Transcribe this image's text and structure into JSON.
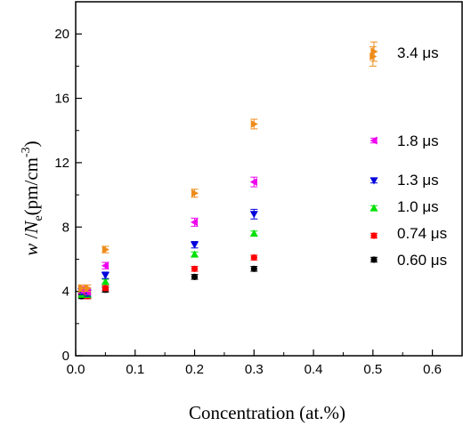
{
  "chart_data": {
    "type": "scatter",
    "title": "",
    "xlabel": "Concentration (at.%)",
    "ylabel": {
      "w": "w",
      "sep": " /",
      "N": "N",
      "sub": "e",
      "unit": "(pm/cm",
      "sup": "-3",
      "close": ")"
    },
    "xlim": [
      0.0,
      0.65
    ],
    "ylim": [
      0,
      22
    ],
    "xticks": [
      "0.0",
      "0.1",
      "0.2",
      "0.3",
      "0.4",
      "0.5",
      "0.6"
    ],
    "yticks": [
      "0",
      "4",
      "8",
      "12",
      "16",
      "20"
    ],
    "grid": false,
    "series": [
      {
        "name": "0.60 μs",
        "color": "#000000",
        "marker": "circle",
        "x": [
          0.01,
          0.02,
          0.05,
          0.2,
          0.3
        ],
        "y": [
          3.7,
          3.7,
          4.1,
          4.9,
          5.4
        ],
        "err": [
          0.15,
          0.15,
          0.15,
          0.15,
          0.15
        ]
      },
      {
        "name": "0.74 μs",
        "color": "#ff0000",
        "marker": "circle",
        "x": [
          0.01,
          0.02,
          0.05,
          0.2,
          0.3
        ],
        "y": [
          3.8,
          3.7,
          4.2,
          5.4,
          6.1
        ],
        "err": [
          0.15,
          0.15,
          0.15,
          0.15,
          0.15
        ]
      },
      {
        "name": "1.0 μs",
        "color": "#00e000",
        "marker": "triangle-up",
        "x": [
          0.01,
          0.02,
          0.05,
          0.2,
          0.3
        ],
        "y": [
          3.8,
          3.8,
          4.6,
          6.3,
          7.6
        ],
        "err": [
          0.15,
          0.15,
          0.15,
          0.15,
          0.15
        ]
      },
      {
        "name": "1.3 μs",
        "color": "#0000dd",
        "marker": "triangle-down",
        "x": [
          0.01,
          0.02,
          0.05,
          0.2,
          0.3
        ],
        "y": [
          4.0,
          3.9,
          5.0,
          6.9,
          8.8
        ],
        "err": [
          0.2,
          0.2,
          0.2,
          0.2,
          0.3
        ]
      },
      {
        "name": "1.8 μs",
        "color": "#ee00ee",
        "marker": "triangle-left",
        "x": [
          0.01,
          0.02,
          0.05,
          0.2,
          0.3
        ],
        "y": [
          4.1,
          4.0,
          5.6,
          8.3,
          10.8
        ],
        "err": [
          0.2,
          0.2,
          0.2,
          0.25,
          0.3
        ]
      },
      {
        "name": "3.4 μs",
        "color": "#ee8c1a",
        "marker": "triangle-right",
        "x": [
          0.01,
          0.02,
          0.05,
          0.2,
          0.3,
          0.5
        ],
        "y": [
          4.2,
          4.2,
          6.6,
          10.1,
          14.4,
          18.6
        ],
        "err": [
          0.2,
          0.2,
          0.2,
          0.25,
          0.3,
          0.6
        ]
      }
    ],
    "legend": {
      "placement": "right",
      "entries": [
        {
          "series": 5,
          "label": "3.4 μs"
        },
        {
          "series": 4,
          "label": "1.8 μs"
        },
        {
          "series": 3,
          "label": "1.3 μs"
        },
        {
          "series": 2,
          "label": "1.0 μs"
        },
        {
          "series": 1,
          "label": "0.74 μs"
        },
        {
          "series": 0,
          "label": "0.60 μs"
        }
      ]
    }
  }
}
